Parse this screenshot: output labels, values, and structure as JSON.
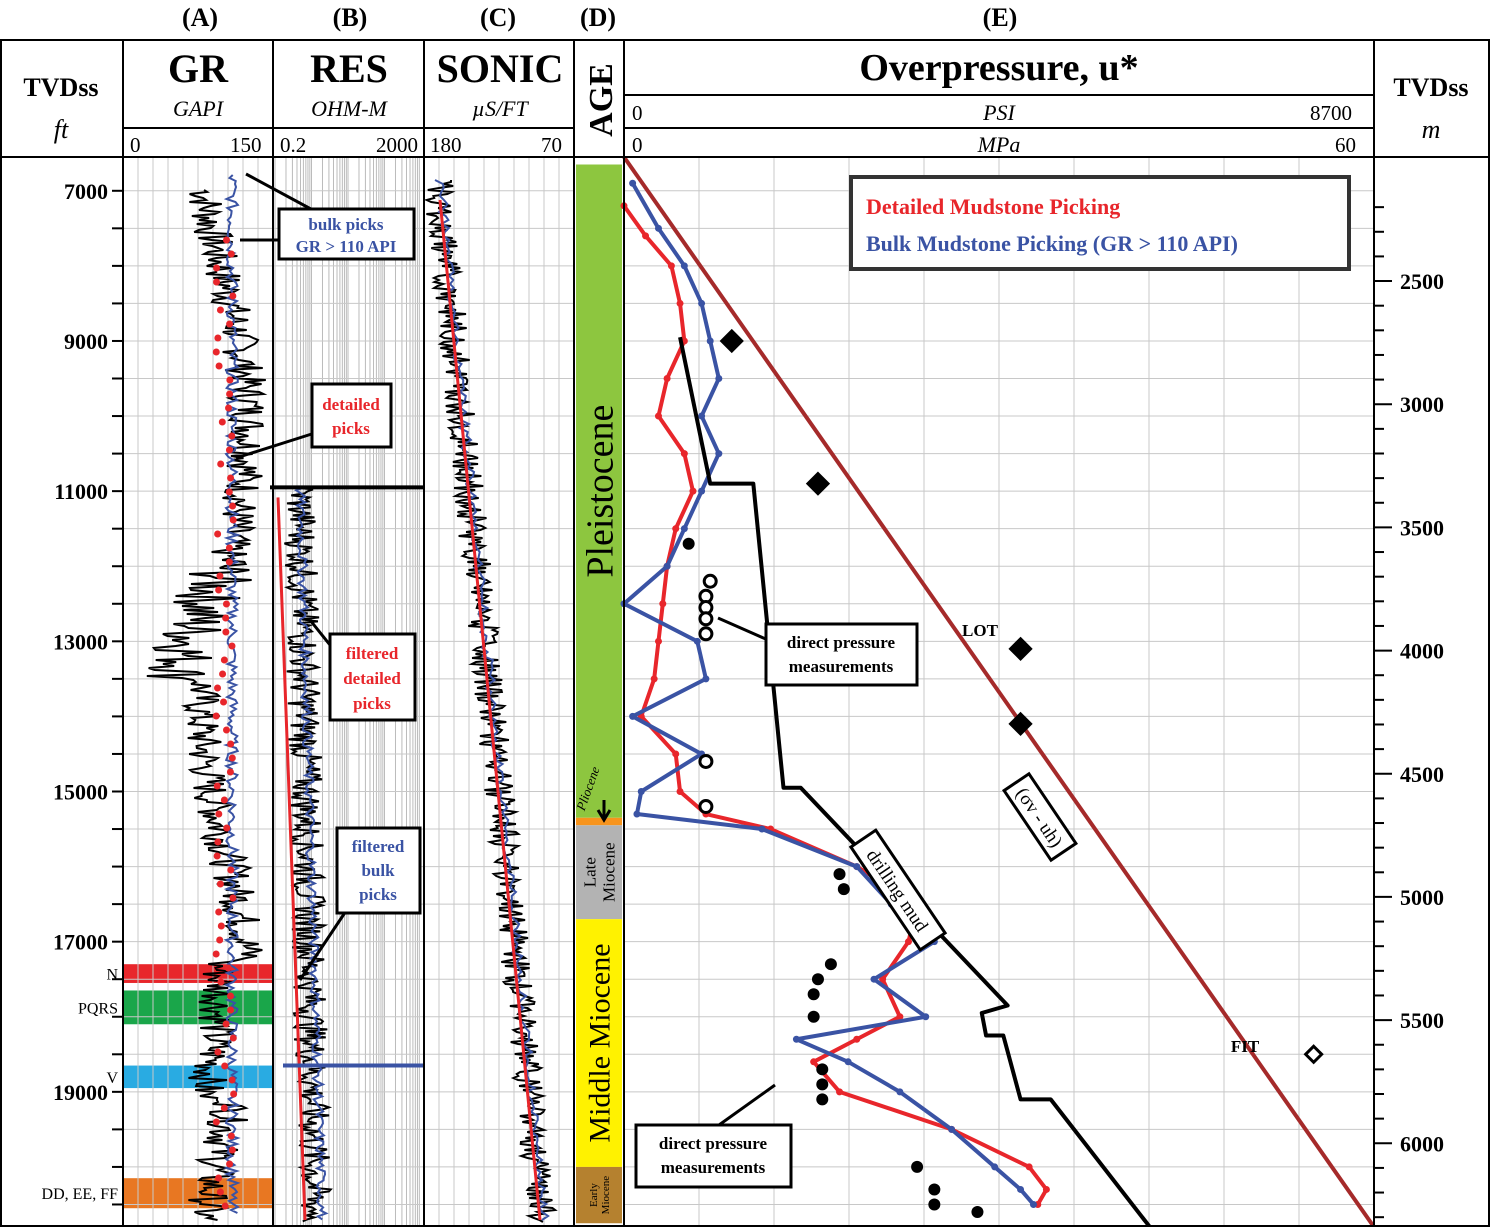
{
  "panel_letters": [
    "(A)",
    "(B)",
    "(C)",
    "(D)",
    "(E)"
  ],
  "columns": {
    "depth_ft": {
      "title": "TVDss",
      "unit": "ft"
    },
    "gr": {
      "title": "GR",
      "unit": "GAPI",
      "min": "0",
      "max": "150"
    },
    "res": {
      "title": "RES",
      "unit": "OHM-M",
      "min": "0.2",
      "max": "2000"
    },
    "sonic": {
      "title": "SONIC",
      "unit": "µS/FT",
      "min": "180",
      "max": "70"
    },
    "age": {
      "title": "AGE"
    },
    "op": {
      "title": "Overpressure, u*",
      "unit1": "PSI",
      "min1": "0",
      "max1": "8700",
      "unit2": "MPa",
      "min2": "0",
      "max2": "60"
    },
    "depth_m": {
      "title": "TVDss",
      "unit": "m"
    }
  },
  "depth_ft_ticks": [
    "7000",
    "9000",
    "11000",
    "13000",
    "15000",
    "17000",
    "19000"
  ],
  "depth_m_ticks": [
    "2500",
    "3000",
    "3500",
    "4000",
    "4500",
    "5000",
    "5500",
    "6000"
  ],
  "sands": [
    {
      "label": "N",
      "top": 17300,
      "base": 17550,
      "color": "#e8262b"
    },
    {
      "label": "PQRS",
      "top": 17650,
      "base": 18100,
      "color": "#1aa64a"
    },
    {
      "label": "V",
      "top": 18650,
      "base": 18950,
      "color": "#29abe2"
    },
    {
      "label": "DD, EE, FF",
      "top": 20150,
      "base": 20550,
      "color": "#e87722"
    }
  ],
  "ages": [
    {
      "label": "Pleistocene",
      "top": 6650,
      "base": 15350,
      "color": "#8dc63f"
    },
    {
      "label": "Pliocene",
      "top": 15350,
      "base": 15450,
      "color": "#f7941d"
    },
    {
      "label": "Late Miocene",
      "top": 15450,
      "base": 16700,
      "color": "#b3b3b3"
    },
    {
      "label": "Middle Miocene",
      "top": 16700,
      "base": 20000,
      "color": "#fff200"
    },
    {
      "label": "Early Miocene",
      "top": 20000,
      "base": 20750,
      "color": "#b5812f"
    }
  ],
  "legend": {
    "detailed": "Detailed Mudstone Picking",
    "bulk": "Bulk Mudstone Picking (GR > 110 API)"
  },
  "annotations": {
    "bulk_picks_1": "bulk picks",
    "bulk_picks_2": "GR > 110 API",
    "detailed_1": "detailed",
    "detailed_2": "picks",
    "filt_det_1": "filtered",
    "filt_det_2": "detailed",
    "filt_det_3": "picks",
    "filt_bulk_1": "filtered",
    "filt_bulk_2": "bulk",
    "filt_bulk_3": "picks",
    "direct_1": "direct pressure",
    "direct_2": "measurements",
    "lot": "LOT",
    "fit": "FIT",
    "drilling_mud": "drilling mud",
    "overburden": "(σv - uh)"
  },
  "colors": {
    "detailed": "#e8262b",
    "bulk": "#3a53a4",
    "overburden": "#a52a2a",
    "mud": "#000000"
  },
  "chart_data": {
    "type": "line",
    "title": "Overpressure, u*",
    "xlabel": "PSI / MPa",
    "ylabel": "TVDss ft",
    "xlim_psi": [
      0,
      8700
    ],
    "ylim_ft": [
      6550,
      20800
    ],
    "series": [
      {
        "name": "Detailed Mudstone Picking",
        "depth_ft": [
          7200,
          7600,
          8000,
          8500,
          9000,
          9500,
          10000,
          10500,
          11000,
          11500,
          12000,
          12500,
          13000,
          13500,
          14000,
          14500,
          15000,
          15300,
          15500,
          16000,
          16500,
          17000,
          17500,
          18000,
          18300,
          18600,
          19000,
          19500,
          20000,
          20300,
          20500
        ],
        "psi": [
          0,
          250,
          550,
          650,
          700,
          500,
          400,
          700,
          800,
          600,
          500,
          450,
          400,
          350,
          200,
          600,
          650,
          950,
          1700,
          2700,
          3400,
          3300,
          3000,
          3200,
          2700,
          2200,
          2500,
          3800,
          4700,
          4900,
          4800
        ]
      },
      {
        "name": "Bulk Mudstone Picking (GR > 110 API)",
        "depth_ft": [
          6900,
          7500,
          8000,
          8500,
          9000,
          9500,
          10000,
          10500,
          11000,
          11500,
          12000,
          12500,
          13000,
          13500,
          14000,
          14500,
          15000,
          15300,
          15500,
          16000,
          16500,
          17000,
          17500,
          18000,
          18300,
          18600,
          19000,
          19500,
          20000,
          20300,
          20500
        ],
        "psi": [
          100,
          400,
          700,
          900,
          1000,
          1100,
          900,
          1100,
          900,
          700,
          500,
          0,
          850,
          950,
          100,
          900,
          200,
          150,
          1600,
          2700,
          3100,
          3600,
          2900,
          3500,
          2000,
          2600,
          3200,
          3800,
          4300,
          4600,
          4750
        ]
      },
      {
        "name": "drilling mud",
        "depth_ft": [
          8950,
          10900,
          10900,
          14950,
          14950,
          17850,
          17950,
          18250,
          18250,
          19100,
          19100,
          20800
        ],
        "psi": [
          650,
          1000,
          1500,
          1850,
          2050,
          4450,
          4150,
          4200,
          4400,
          4600,
          4950,
          6100
        ]
      },
      {
        "name": "(σv - uh)",
        "depth_ft": [
          6550,
          20800
        ],
        "psi": [
          0,
          8700
        ]
      }
    ],
    "direct_pressure_open": [
      {
        "depth_ft": 12200,
        "psi": 1000
      },
      {
        "depth_ft": 12400,
        "psi": 950
      },
      {
        "depth_ft": 12550,
        "psi": 950
      },
      {
        "depth_ft": 12700,
        "psi": 950
      },
      {
        "depth_ft": 12900,
        "psi": 950
      },
      {
        "depth_ft": 14600,
        "psi": 950
      },
      {
        "depth_ft": 15200,
        "psi": 950
      }
    ],
    "direct_pressure_solid": [
      {
        "depth_ft": 11700,
        "psi": 750
      },
      {
        "depth_ft": 16100,
        "psi": 2500
      },
      {
        "depth_ft": 16300,
        "psi": 2550
      },
      {
        "depth_ft": 17300,
        "psi": 2400
      },
      {
        "depth_ft": 17500,
        "psi": 2250
      },
      {
        "depth_ft": 17700,
        "psi": 2200
      },
      {
        "depth_ft": 18000,
        "psi": 2200
      },
      {
        "depth_ft": 18700,
        "psi": 2300
      },
      {
        "depth_ft": 18900,
        "psi": 2300
      },
      {
        "depth_ft": 19100,
        "psi": 2300
      },
      {
        "depth_ft": 20000,
        "psi": 3400
      },
      {
        "depth_ft": 20300,
        "psi": 3600
      },
      {
        "depth_ft": 20500,
        "psi": 3600
      },
      {
        "depth_ft": 20600,
        "psi": 4100
      }
    ],
    "lot_fit_points": [
      {
        "label": "",
        "depth_ft": 9000,
        "psi": 1250
      },
      {
        "label": "",
        "depth_ft": 10900,
        "psi": 2250
      },
      {
        "label": "LOT",
        "depth_ft": 13100,
        "psi": 4600
      },
      {
        "label": "",
        "depth_ft": 14100,
        "psi": 4600
      },
      {
        "label": "FIT",
        "depth_ft": 18500,
        "psi": 8000
      }
    ]
  }
}
